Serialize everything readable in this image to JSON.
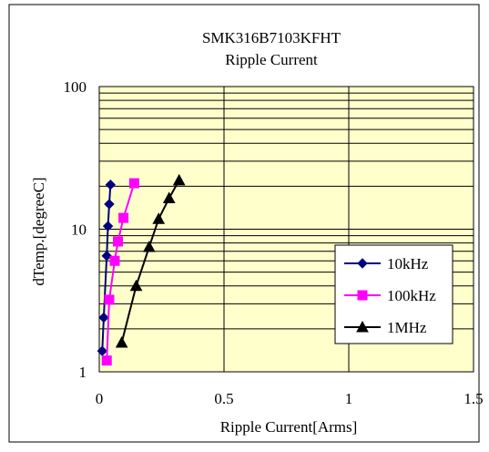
{
  "chart_data": {
    "type": "scatter",
    "title": "SMK316B7103KFHT",
    "subtitle": "Ripple Current",
    "xlabel": "Ripple Current[Arms]",
    "ylabel": "dTemp.[degreeC]",
    "xlim": [
      0,
      1.5
    ],
    "ylim": [
      1,
      100
    ],
    "y_scale": "log",
    "x_ticks": [
      "0",
      "0.5",
      "1",
      "1.5"
    ],
    "y_ticks": [
      "1",
      "10",
      "100"
    ],
    "grid": true,
    "legend_position": "right",
    "plot_background": "#ffffcc",
    "series": [
      {
        "name": "10kHz",
        "color": "#000080",
        "marker": "diamond",
        "x": [
          0.012,
          0.018,
          0.03,
          0.035,
          0.04,
          0.045
        ],
        "y": [
          1.4,
          2.4,
          6.5,
          10.5,
          15.0,
          20.5
        ]
      },
      {
        "name": "100kHz",
        "color": "#ff00ff",
        "marker": "square",
        "x": [
          0.03,
          0.04,
          0.062,
          0.075,
          0.097,
          0.14
        ],
        "y": [
          1.2,
          3.2,
          6.0,
          8.2,
          12.0,
          21.0
        ]
      },
      {
        "name": "1MHz",
        "color": "#000000",
        "marker": "triangle",
        "x": [
          0.09,
          0.148,
          0.2,
          0.238,
          0.28,
          0.32
        ],
        "y": [
          1.6,
          4.0,
          7.5,
          11.8,
          16.5,
          22.0
        ]
      }
    ]
  }
}
